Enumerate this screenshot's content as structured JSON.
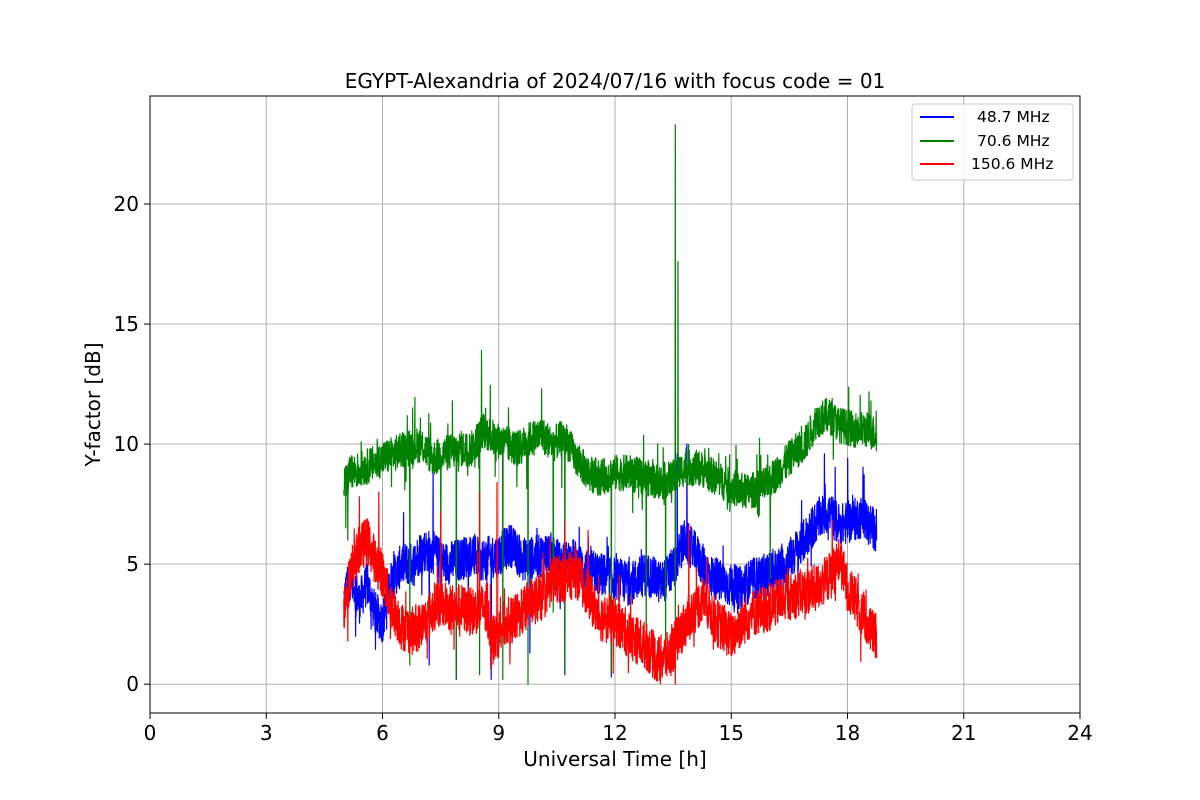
{
  "chart_data": {
    "type": "line",
    "title": "EGYPT-Alexandria of 2024/07/16 with focus code = 01",
    "xlabel": "Universal Time [h]",
    "ylabel": "Y-factor [dB]",
    "xlim": [
      0,
      24
    ],
    "ylim": [
      -1.2,
      24.5
    ],
    "xticks": [
      0,
      3,
      6,
      9,
      12,
      15,
      18,
      21,
      24
    ],
    "yticks": [
      0,
      5,
      10,
      15,
      20
    ],
    "grid": true,
    "legend_position": "top-right",
    "series": [
      {
        "name": "48.7 MHz",
        "color": "#0000ff",
        "points": [
          [
            5.0,
            3.5
          ],
          [
            5.2,
            4.6
          ],
          [
            5.4,
            3.4
          ],
          [
            5.6,
            4.2
          ],
          [
            5.8,
            3.0
          ],
          [
            6.0,
            2.6
          ],
          [
            6.2,
            4.2
          ],
          [
            6.5,
            5.0
          ],
          [
            6.8,
            5.0
          ],
          [
            7.0,
            5.6
          ],
          [
            7.3,
            5.5
          ],
          [
            7.6,
            5.0
          ],
          [
            8.0,
            5.2
          ],
          [
            8.3,
            5.4
          ],
          [
            8.6,
            5.2
          ],
          [
            9.0,
            5.4
          ],
          [
            9.3,
            5.8
          ],
          [
            9.6,
            5.2
          ],
          [
            10.0,
            5.3
          ],
          [
            10.3,
            5.5
          ],
          [
            10.6,
            5.0
          ],
          [
            10.9,
            5.2
          ],
          [
            11.2,
            4.8
          ],
          [
            11.6,
            4.6
          ],
          [
            12.0,
            4.4
          ],
          [
            12.4,
            4.2
          ],
          [
            12.8,
            4.6
          ],
          [
            13.2,
            4.2
          ],
          [
            13.5,
            4.8
          ],
          [
            13.8,
            6.0
          ],
          [
            14.1,
            5.4
          ],
          [
            14.4,
            4.6
          ],
          [
            14.8,
            4.2
          ],
          [
            15.2,
            4.0
          ],
          [
            15.6,
            4.4
          ],
          [
            16.0,
            4.6
          ],
          [
            16.4,
            5.0
          ],
          [
            16.8,
            5.8
          ],
          [
            17.2,
            6.8
          ],
          [
            17.5,
            7.2
          ],
          [
            17.8,
            6.6
          ],
          [
            18.1,
            6.8
          ],
          [
            18.4,
            7.0
          ],
          [
            18.6,
            6.6
          ],
          [
            18.75,
            6.4
          ]
        ],
        "dips": [
          [
            5.3,
            2.0
          ],
          [
            5.7,
            2.3
          ],
          [
            6.1,
            2.3
          ],
          [
            7.2,
            0.8
          ],
          [
            7.9,
            0.2
          ],
          [
            8.8,
            0.2
          ],
          [
            9.8,
            1.3
          ],
          [
            10.7,
            0.4
          ],
          [
            11.9,
            0.3
          ]
        ],
        "spikes": [
          [
            7.3,
            9.2
          ],
          [
            13.6,
            9.6
          ],
          [
            13.85,
            10.0
          ],
          [
            17.4,
            9.6
          ],
          [
            18.0,
            9.4
          ]
        ]
      },
      {
        "name": "70.6 MHz",
        "color": "#008000",
        "points": [
          [
            5.0,
            8.4
          ],
          [
            5.2,
            8.8
          ],
          [
            5.5,
            9.0
          ],
          [
            5.8,
            9.2
          ],
          [
            6.0,
            9.4
          ],
          [
            6.3,
            9.6
          ],
          [
            6.6,
            9.8
          ],
          [
            7.0,
            10.0
          ],
          [
            7.3,
            9.4
          ],
          [
            7.6,
            9.6
          ],
          [
            8.0,
            9.8
          ],
          [
            8.3,
            9.8
          ],
          [
            8.6,
            10.6
          ],
          [
            8.9,
            10.2
          ],
          [
            9.2,
            10.0
          ],
          [
            9.5,
            9.8
          ],
          [
            9.8,
            10.2
          ],
          [
            10.1,
            10.4
          ],
          [
            10.4,
            10.0
          ],
          [
            10.7,
            10.3
          ],
          [
            11.0,
            9.4
          ],
          [
            11.3,
            8.8
          ],
          [
            11.6,
            8.6
          ],
          [
            12.0,
            8.8
          ],
          [
            12.4,
            8.8
          ],
          [
            12.8,
            8.6
          ],
          [
            13.2,
            8.4
          ],
          [
            13.5,
            8.6
          ],
          [
            13.8,
            9.0
          ],
          [
            14.2,
            9.0
          ],
          [
            14.6,
            8.6
          ],
          [
            15.0,
            8.2
          ],
          [
            15.4,
            8.0
          ],
          [
            15.8,
            8.2
          ],
          [
            16.2,
            8.8
          ],
          [
            16.6,
            9.6
          ],
          [
            16.9,
            10.0
          ],
          [
            17.2,
            11.0
          ],
          [
            17.5,
            11.2
          ],
          [
            17.8,
            10.8
          ],
          [
            18.2,
            10.6
          ],
          [
            18.5,
            10.6
          ],
          [
            18.75,
            10.4
          ]
        ],
        "dips": [
          [
            5.1,
            6.0
          ],
          [
            6.7,
            0.8
          ],
          [
            7.5,
            4.0
          ],
          [
            7.9,
            0.2
          ],
          [
            8.5,
            0.4
          ],
          [
            9.1,
            0.2
          ],
          [
            9.75,
            0.0
          ],
          [
            10.4,
            3.0
          ],
          [
            10.7,
            0.5
          ],
          [
            11.9,
            0.5
          ],
          [
            12.8,
            1.2
          ],
          [
            13.3,
            0.8
          ],
          [
            13.55,
            2.5
          ],
          [
            16.0,
            4.4
          ]
        ],
        "spikes": [
          [
            8.55,
            13.9
          ],
          [
            7.8,
            11.8
          ],
          [
            10.1,
            12.3
          ],
          [
            13.55,
            23.3
          ],
          [
            13.62,
            17.6
          ],
          [
            17.6,
            11.9
          ],
          [
            18.6,
            11.8
          ]
        ]
      },
      {
        "name": "150.6 MHz",
        "color": "#ff0000",
        "points": [
          [
            5.0,
            3.2
          ],
          [
            5.2,
            4.8
          ],
          [
            5.4,
            5.6
          ],
          [
            5.6,
            6.0
          ],
          [
            5.8,
            5.2
          ],
          [
            6.0,
            4.6
          ],
          [
            6.2,
            3.4
          ],
          [
            6.5,
            2.4
          ],
          [
            6.8,
            2.2
          ],
          [
            7.1,
            2.6
          ],
          [
            7.4,
            3.4
          ],
          [
            7.7,
            3.2
          ],
          [
            8.0,
            3.2
          ],
          [
            8.3,
            3.0
          ],
          [
            8.6,
            3.2
          ],
          [
            8.9,
            1.9
          ],
          [
            9.2,
            2.6
          ],
          [
            9.5,
            2.8
          ],
          [
            9.8,
            3.4
          ],
          [
            10.1,
            3.6
          ],
          [
            10.4,
            4.4
          ],
          [
            10.7,
            4.4
          ],
          [
            11.0,
            4.6
          ],
          [
            11.3,
            3.8
          ],
          [
            11.6,
            2.8
          ],
          [
            12.0,
            2.6
          ],
          [
            12.4,
            2.0
          ],
          [
            12.8,
            1.6
          ],
          [
            13.1,
            1.0
          ],
          [
            13.4,
            1.2
          ],
          [
            13.7,
            2.2
          ],
          [
            14.0,
            3.0
          ],
          [
            14.3,
            3.6
          ],
          [
            14.6,
            2.6
          ],
          [
            15.0,
            2.0
          ],
          [
            15.3,
            2.6
          ],
          [
            15.6,
            3.0
          ],
          [
            16.0,
            3.2
          ],
          [
            16.4,
            3.6
          ],
          [
            16.8,
            3.8
          ],
          [
            17.2,
            4.0
          ],
          [
            17.6,
            4.6
          ],
          [
            17.8,
            5.2
          ],
          [
            18.0,
            4.0
          ],
          [
            18.3,
            3.2
          ],
          [
            18.6,
            2.2
          ],
          [
            18.75,
            2.0
          ]
        ],
        "dips": [
          [
            5.1,
            1.8
          ],
          [
            6.2,
            1.9
          ],
          [
            8.8,
            1.0
          ],
          [
            13.55,
            0.0
          ]
        ],
        "spikes": [
          [
            5.4,
            7.8
          ],
          [
            5.9,
            8.0
          ],
          [
            7.5,
            7.2
          ],
          [
            8.5,
            8.0
          ],
          [
            8.95,
            8.4
          ],
          [
            10.7,
            6.8
          ],
          [
            11.3,
            6.4
          ],
          [
            13.9,
            6.6
          ],
          [
            17.6,
            6.8
          ]
        ]
      }
    ]
  }
}
